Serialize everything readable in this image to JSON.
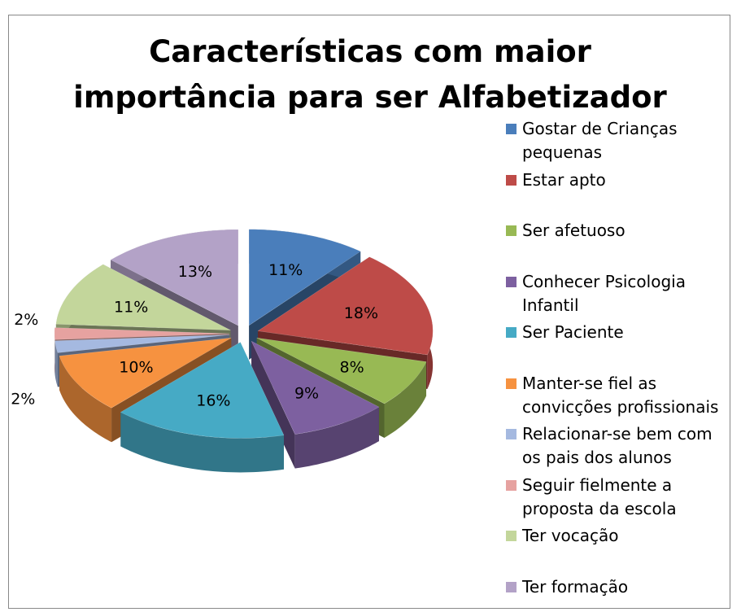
{
  "chart_data": {
    "type": "pie3d",
    "title": [
      "Características com maior",
      "importância para ser Alfabetizador"
    ],
    "series": [
      {
        "name": "Gostar de Crianças pequenas",
        "color": "#4a7ebb"
      },
      {
        "name": "Estar apto",
        "color": "#be4b48"
      },
      {
        "name": "Ser afetuoso",
        "color": "#98b954"
      },
      {
        "name": "Conhecer Psicologia Infantil",
        "color": "#7d60a0"
      },
      {
        "name": "Ser Paciente",
        "color": "#46aac5"
      },
      {
        "name": "Manter-se fiel as convicções profissionais",
        "color": "#f69240"
      },
      {
        "name": "Relacionar-se bem com os pais dos alunos",
        "color": "#a5b9e0"
      },
      {
        "name": "Seguir fielmente a proposta da escola",
        "color": "#e6a2a0"
      },
      {
        "name": "Ter vocação",
        "color": "#c3d69b"
      },
      {
        "name": "Ter formação",
        "color": "#b3a2c7"
      }
    ],
    "values": [
      11,
      18,
      8,
      9,
      16,
      10,
      2,
      2,
      11,
      13
    ],
    "value_labels": [
      "11%",
      "18%",
      "8%",
      "9%",
      "16%",
      "10%",
      "2%",
      "2%",
      "11%",
      "13%"
    ]
  }
}
